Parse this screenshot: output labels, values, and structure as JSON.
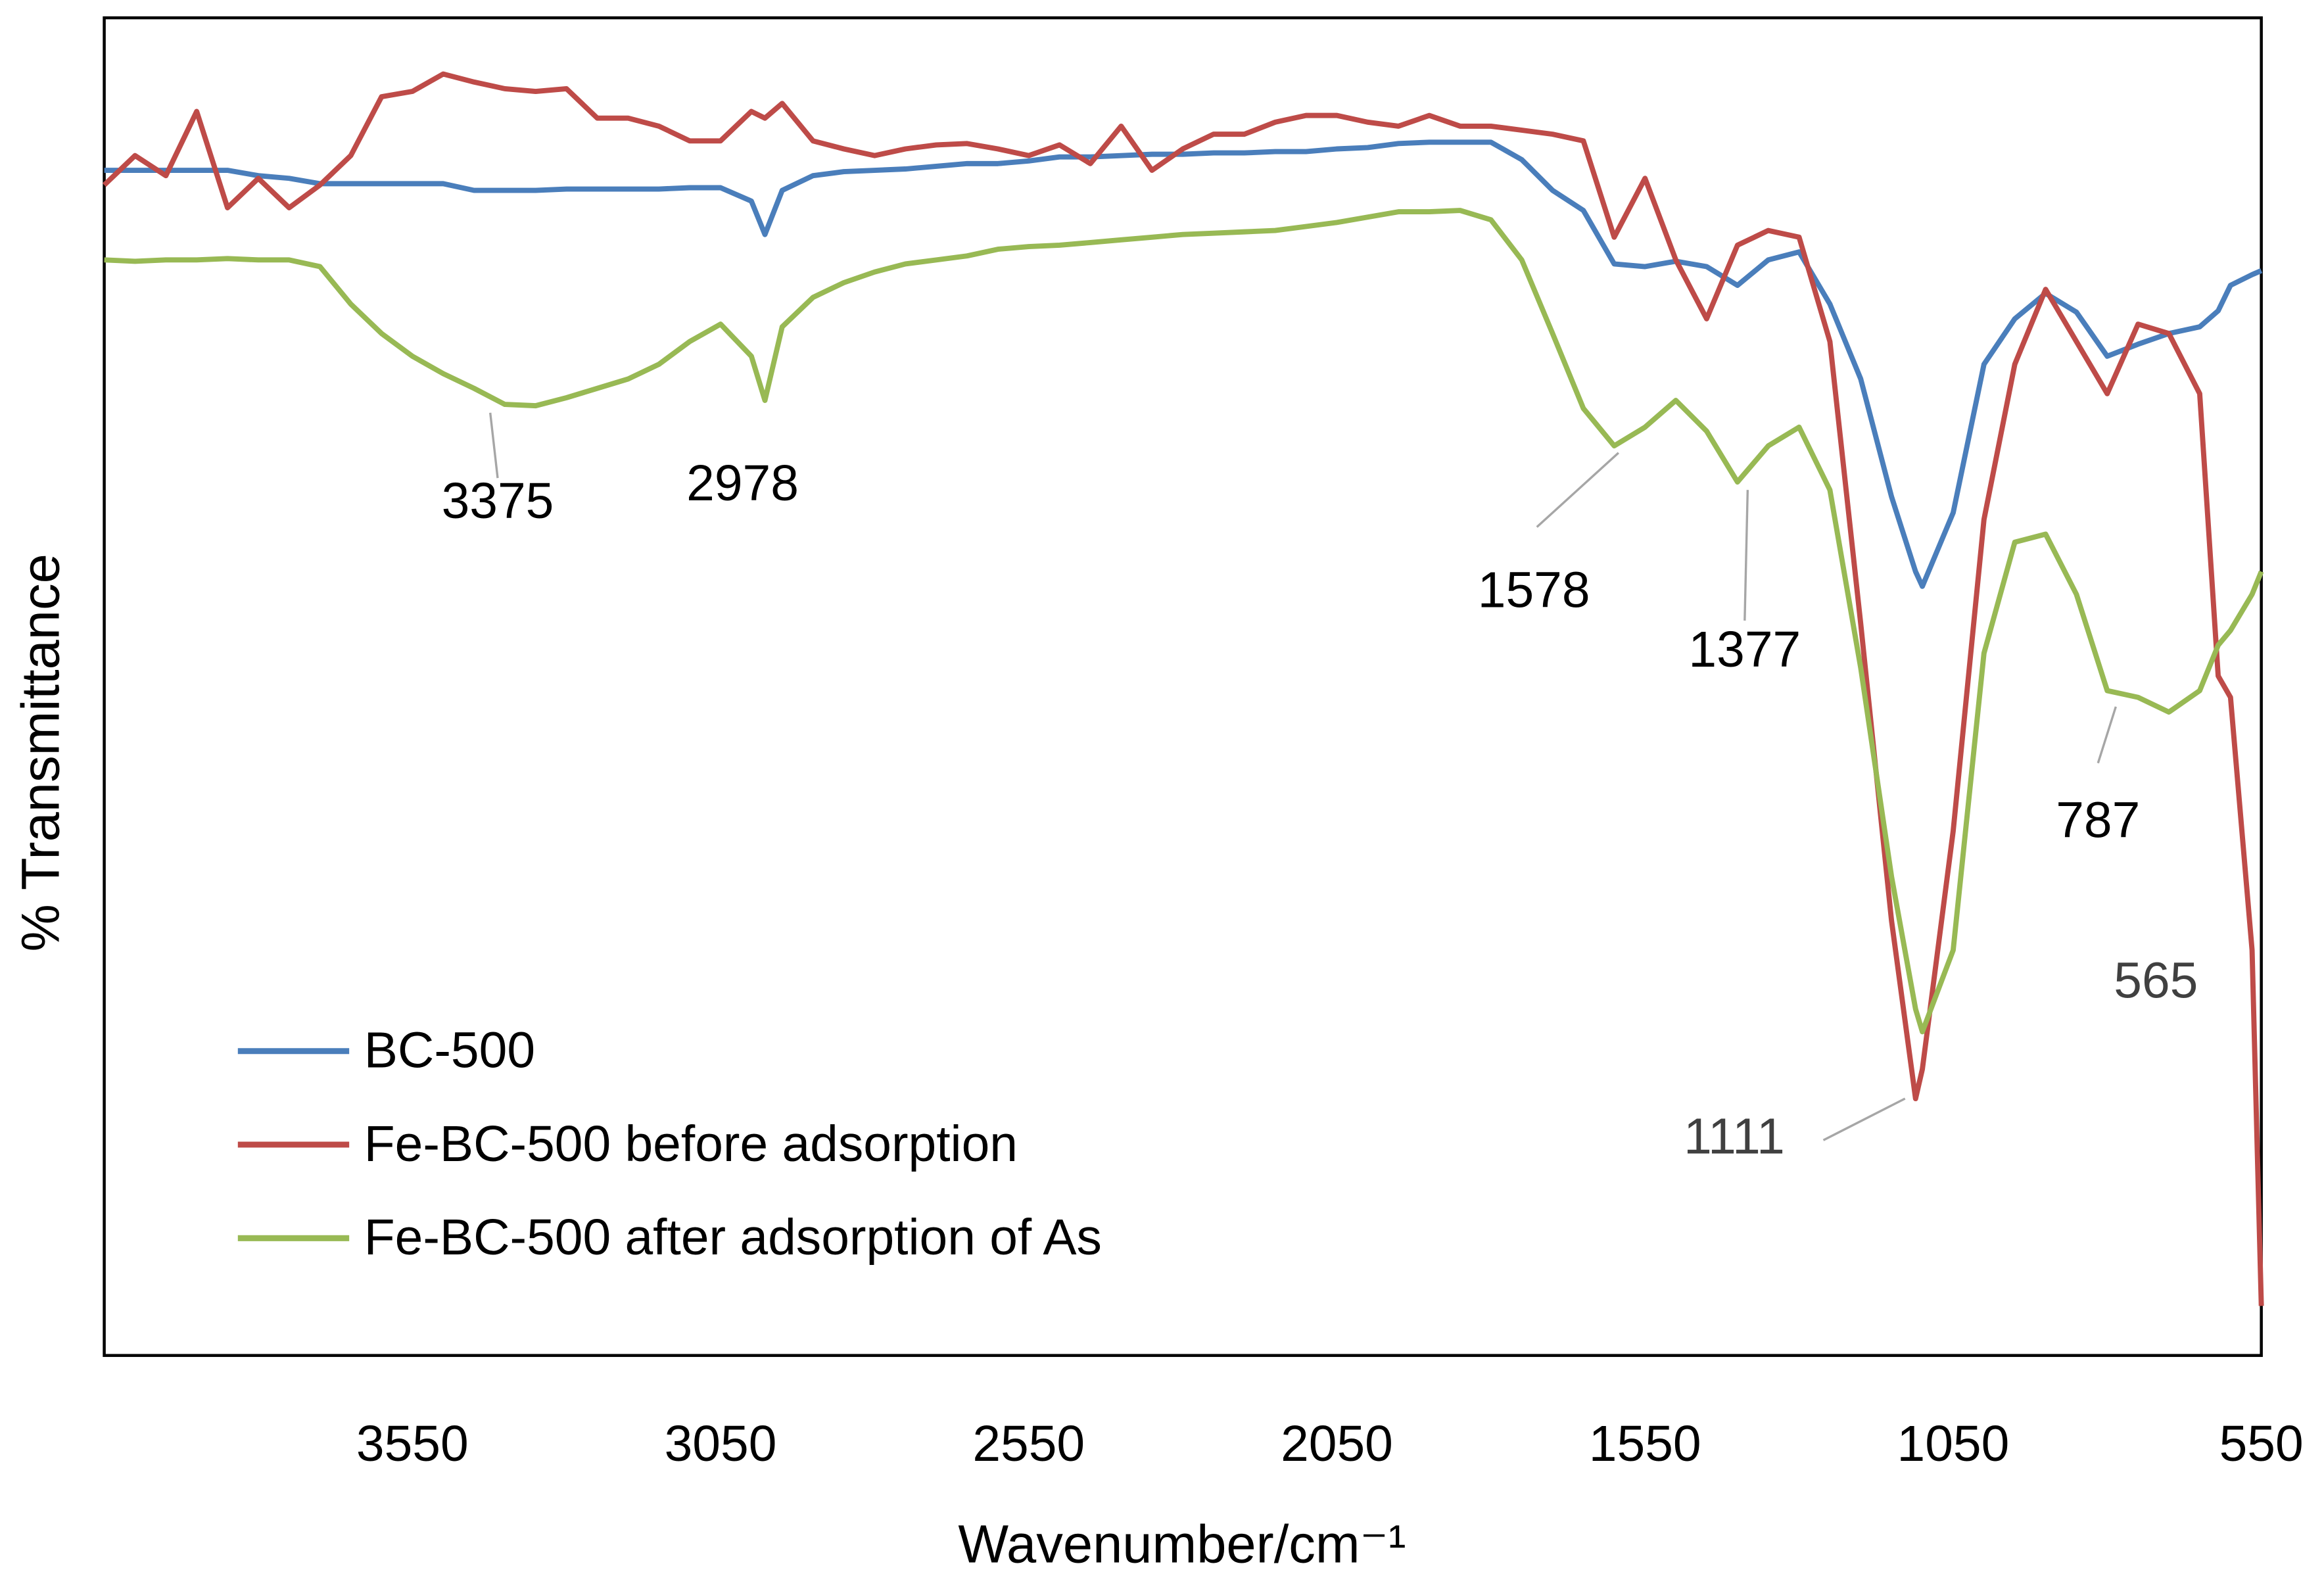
{
  "chart_data": {
    "type": "line",
    "xlabel": "Wavenumber/cm⁻¹",
    "ylabel": "% Transmittance",
    "xlim": [
      4050,
      550
    ],
    "ylim": [
      0,
      100
    ],
    "xticks": [
      3550,
      3050,
      2550,
      2050,
      1550,
      1050,
      550
    ],
    "grid": false,
    "legend": "lower left",
    "x": [
      4050,
      4000,
      3950,
      3900,
      3850,
      3800,
      3750,
      3700,
      3650,
      3600,
      3550,
      3500,
      3450,
      3400,
      3350,
      3300,
      3250,
      3200,
      3150,
      3100,
      3050,
      3000,
      2978,
      2950,
      2900,
      2850,
      2800,
      2750,
      2700,
      2650,
      2600,
      2550,
      2500,
      2450,
      2400,
      2350,
      2300,
      2250,
      2200,
      2150,
      2100,
      2050,
      2000,
      1950,
      1900,
      1850,
      1800,
      1750,
      1700,
      1650,
      1600,
      1550,
      1500,
      1450,
      1400,
      1350,
      1300,
      1250,
      1200,
      1150,
      1111,
      1100,
      1050,
      1000,
      950,
      900,
      850,
      800,
      750,
      700,
      650,
      620,
      600,
      565,
      550
    ],
    "series": [
      {
        "name": "BC-500",
        "color": "#4a7ebb",
        "values": [
          88.6,
          88.6,
          88.6,
          88.6,
          88.6,
          88.2,
          88.0,
          87.6,
          87.6,
          87.6,
          87.6,
          87.6,
          87.1,
          87.1,
          87.1,
          87.2,
          87.2,
          87.2,
          87.2,
          87.3,
          87.3,
          86.3,
          83.8,
          87.1,
          88.2,
          88.5,
          88.6,
          88.7,
          88.9,
          89.1,
          89.1,
          89.3,
          89.6,
          89.6,
          89.7,
          89.8,
          89.8,
          89.9,
          89.9,
          90.0,
          90.0,
          90.2,
          90.3,
          90.6,
          90.7,
          90.7,
          90.7,
          89.4,
          87.1,
          85.6,
          81.6,
          81.4,
          81.8,
          81.4,
          80.0,
          81.9,
          82.5,
          78.6,
          73.0,
          64.2,
          58.6,
          57.5,
          63.0,
          74.1,
          77.5,
          79.4,
          78.0,
          74.7,
          75.6,
          76.4,
          76.9,
          78.1,
          80.0,
          80.8,
          81.1
        ]
      },
      {
        "name": "Fe-BC-500 before adsorption",
        "color": "#be4b48",
        "values": [
          87.5,
          89.7,
          88.2,
          93.0,
          85.8,
          88.0,
          85.8,
          87.5,
          89.7,
          94.1,
          94.5,
          95.8,
          95.2,
          94.7,
          94.5,
          94.7,
          92.5,
          92.5,
          91.9,
          90.8,
          90.8,
          93.0,
          92.5,
          93.6,
          90.8,
          90.2,
          89.7,
          90.2,
          90.5,
          90.6,
          90.2,
          89.7,
          90.5,
          89.1,
          91.9,
          88.6,
          90.2,
          91.3,
          91.3,
          92.2,
          92.7,
          92.7,
          92.2,
          91.9,
          92.7,
          91.9,
          91.9,
          91.6,
          91.3,
          90.8,
          83.6,
          88.0,
          81.9,
          77.5,
          83.0,
          84.1,
          83.6,
          75.8,
          54.7,
          32.5,
          19.2,
          21.4,
          39.2,
          62.5,
          74.1,
          79.7,
          75.8,
          71.9,
          77.1,
          76.4,
          71.9,
          50.8,
          49.2,
          30.3,
          3.7
        ]
      },
      {
        "name": "Fe-BC-500 after adsorption of As",
        "color": "#98b954",
        "values": [
          81.9,
          81.8,
          81.9,
          81.9,
          82.0,
          81.9,
          81.9,
          81.4,
          78.6,
          76.4,
          74.7,
          73.4,
          72.3,
          71.1,
          71.0,
          71.6,
          72.3,
          73.0,
          74.1,
          75.8,
          77.1,
          74.7,
          71.4,
          76.9,
          79.1,
          80.2,
          81.0,
          81.6,
          81.9,
          82.2,
          82.7,
          82.9,
          83.0,
          83.2,
          83.4,
          83.6,
          83.8,
          83.9,
          84.0,
          84.1,
          84.4,
          84.7,
          85.1,
          85.5,
          85.5,
          85.6,
          84.9,
          81.9,
          76.4,
          70.8,
          68.0,
          69.4,
          71.4,
          69.1,
          65.3,
          68.0,
          69.4,
          64.7,
          51.4,
          35.8,
          25.9,
          24.2,
          30.3,
          52.5,
          60.8,
          61.4,
          56.9,
          49.7,
          49.2,
          48.1,
          49.7,
          53.1,
          54.2,
          56.9,
          58.6
        ]
      }
    ],
    "annotations": [
      "3375",
      "2978",
      "1578",
      "1377",
      "1111",
      "787",
      "565"
    ]
  }
}
